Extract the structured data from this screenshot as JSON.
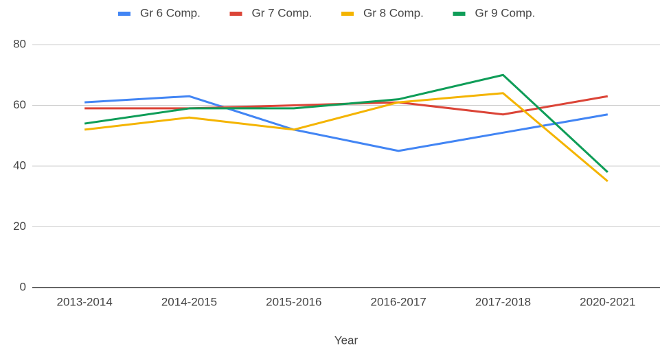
{
  "chart_data": {
    "type": "line",
    "categories": [
      "2013-2014",
      "2014-2015",
      "2015-2016",
      "2016-2017",
      "2017-2018",
      "2020-2021"
    ],
    "series": [
      {
        "name": "Gr 6 Comp.",
        "color": "#4285f4",
        "values": [
          61,
          63,
          52,
          45,
          51,
          57
        ]
      },
      {
        "name": "Gr 7 Comp.",
        "color": "#db4437",
        "values": [
          59,
          59,
          60,
          61,
          57,
          63
        ]
      },
      {
        "name": "Gr 8 Comp.",
        "color": "#f4b400",
        "values": [
          52,
          56,
          52,
          61,
          64,
          35
        ]
      },
      {
        "name": "Gr 9 Comp.",
        "color": "#0f9d58",
        "values": [
          54,
          59,
          59,
          62,
          70,
          38
        ]
      }
    ],
    "x_label": "Year",
    "ylim": [
      0,
      80
    ],
    "yticks": [
      0,
      20,
      40,
      60,
      80
    ],
    "grid": true,
    "legend": "top"
  }
}
